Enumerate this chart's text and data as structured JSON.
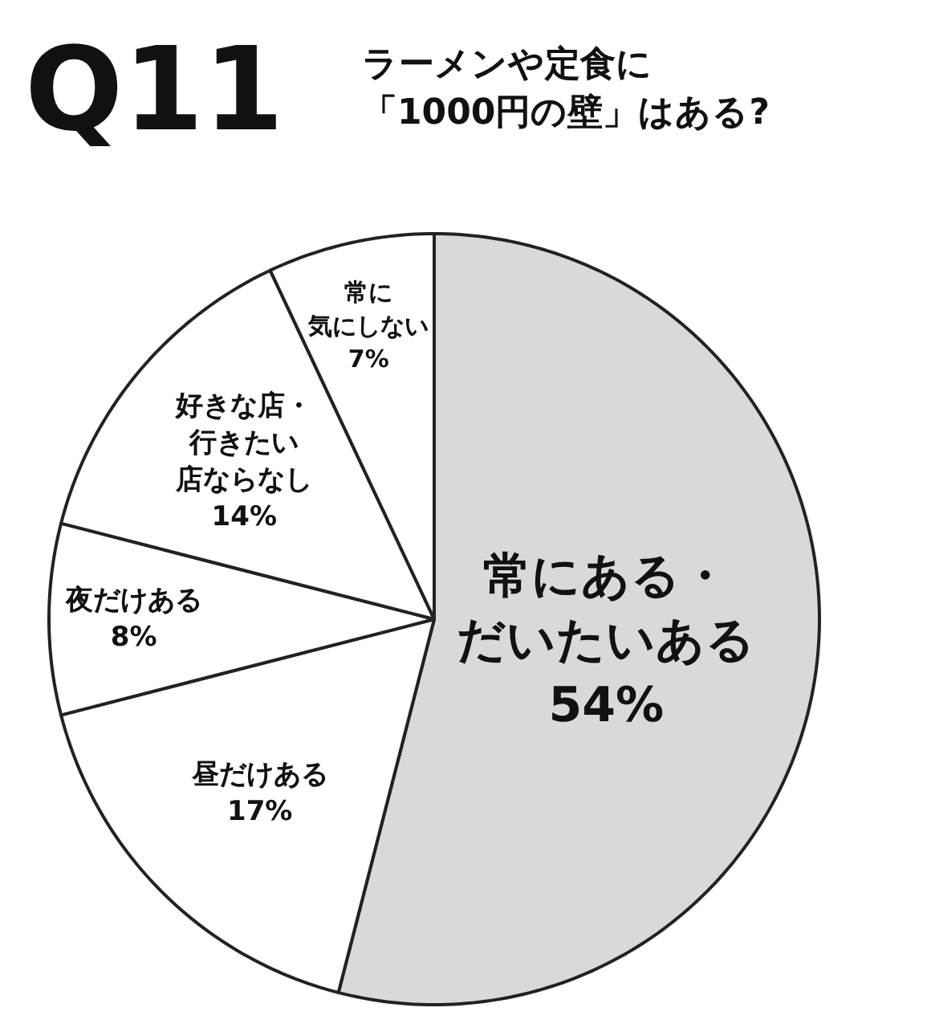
{
  "chart_data": {
    "type": "pie",
    "title": "Q11",
    "subtitle": "ラーメンや定食に「1000円の壁」はある?",
    "categories": [
      "常にある・だいたいある",
      "昼だけある",
      "夜だけある",
      "好きな店・行きたい店ならなし",
      "常に気にしない"
    ],
    "values": [
      54,
      17,
      8,
      14,
      7
    ],
    "value_labels": [
      "54%",
      "17%",
      "8%",
      "14%",
      "7%"
    ],
    "colors": [
      "#d9d9d9",
      "#ffffff",
      "#ffffff",
      "#ffffff",
      "#ffffff"
    ]
  }
}
